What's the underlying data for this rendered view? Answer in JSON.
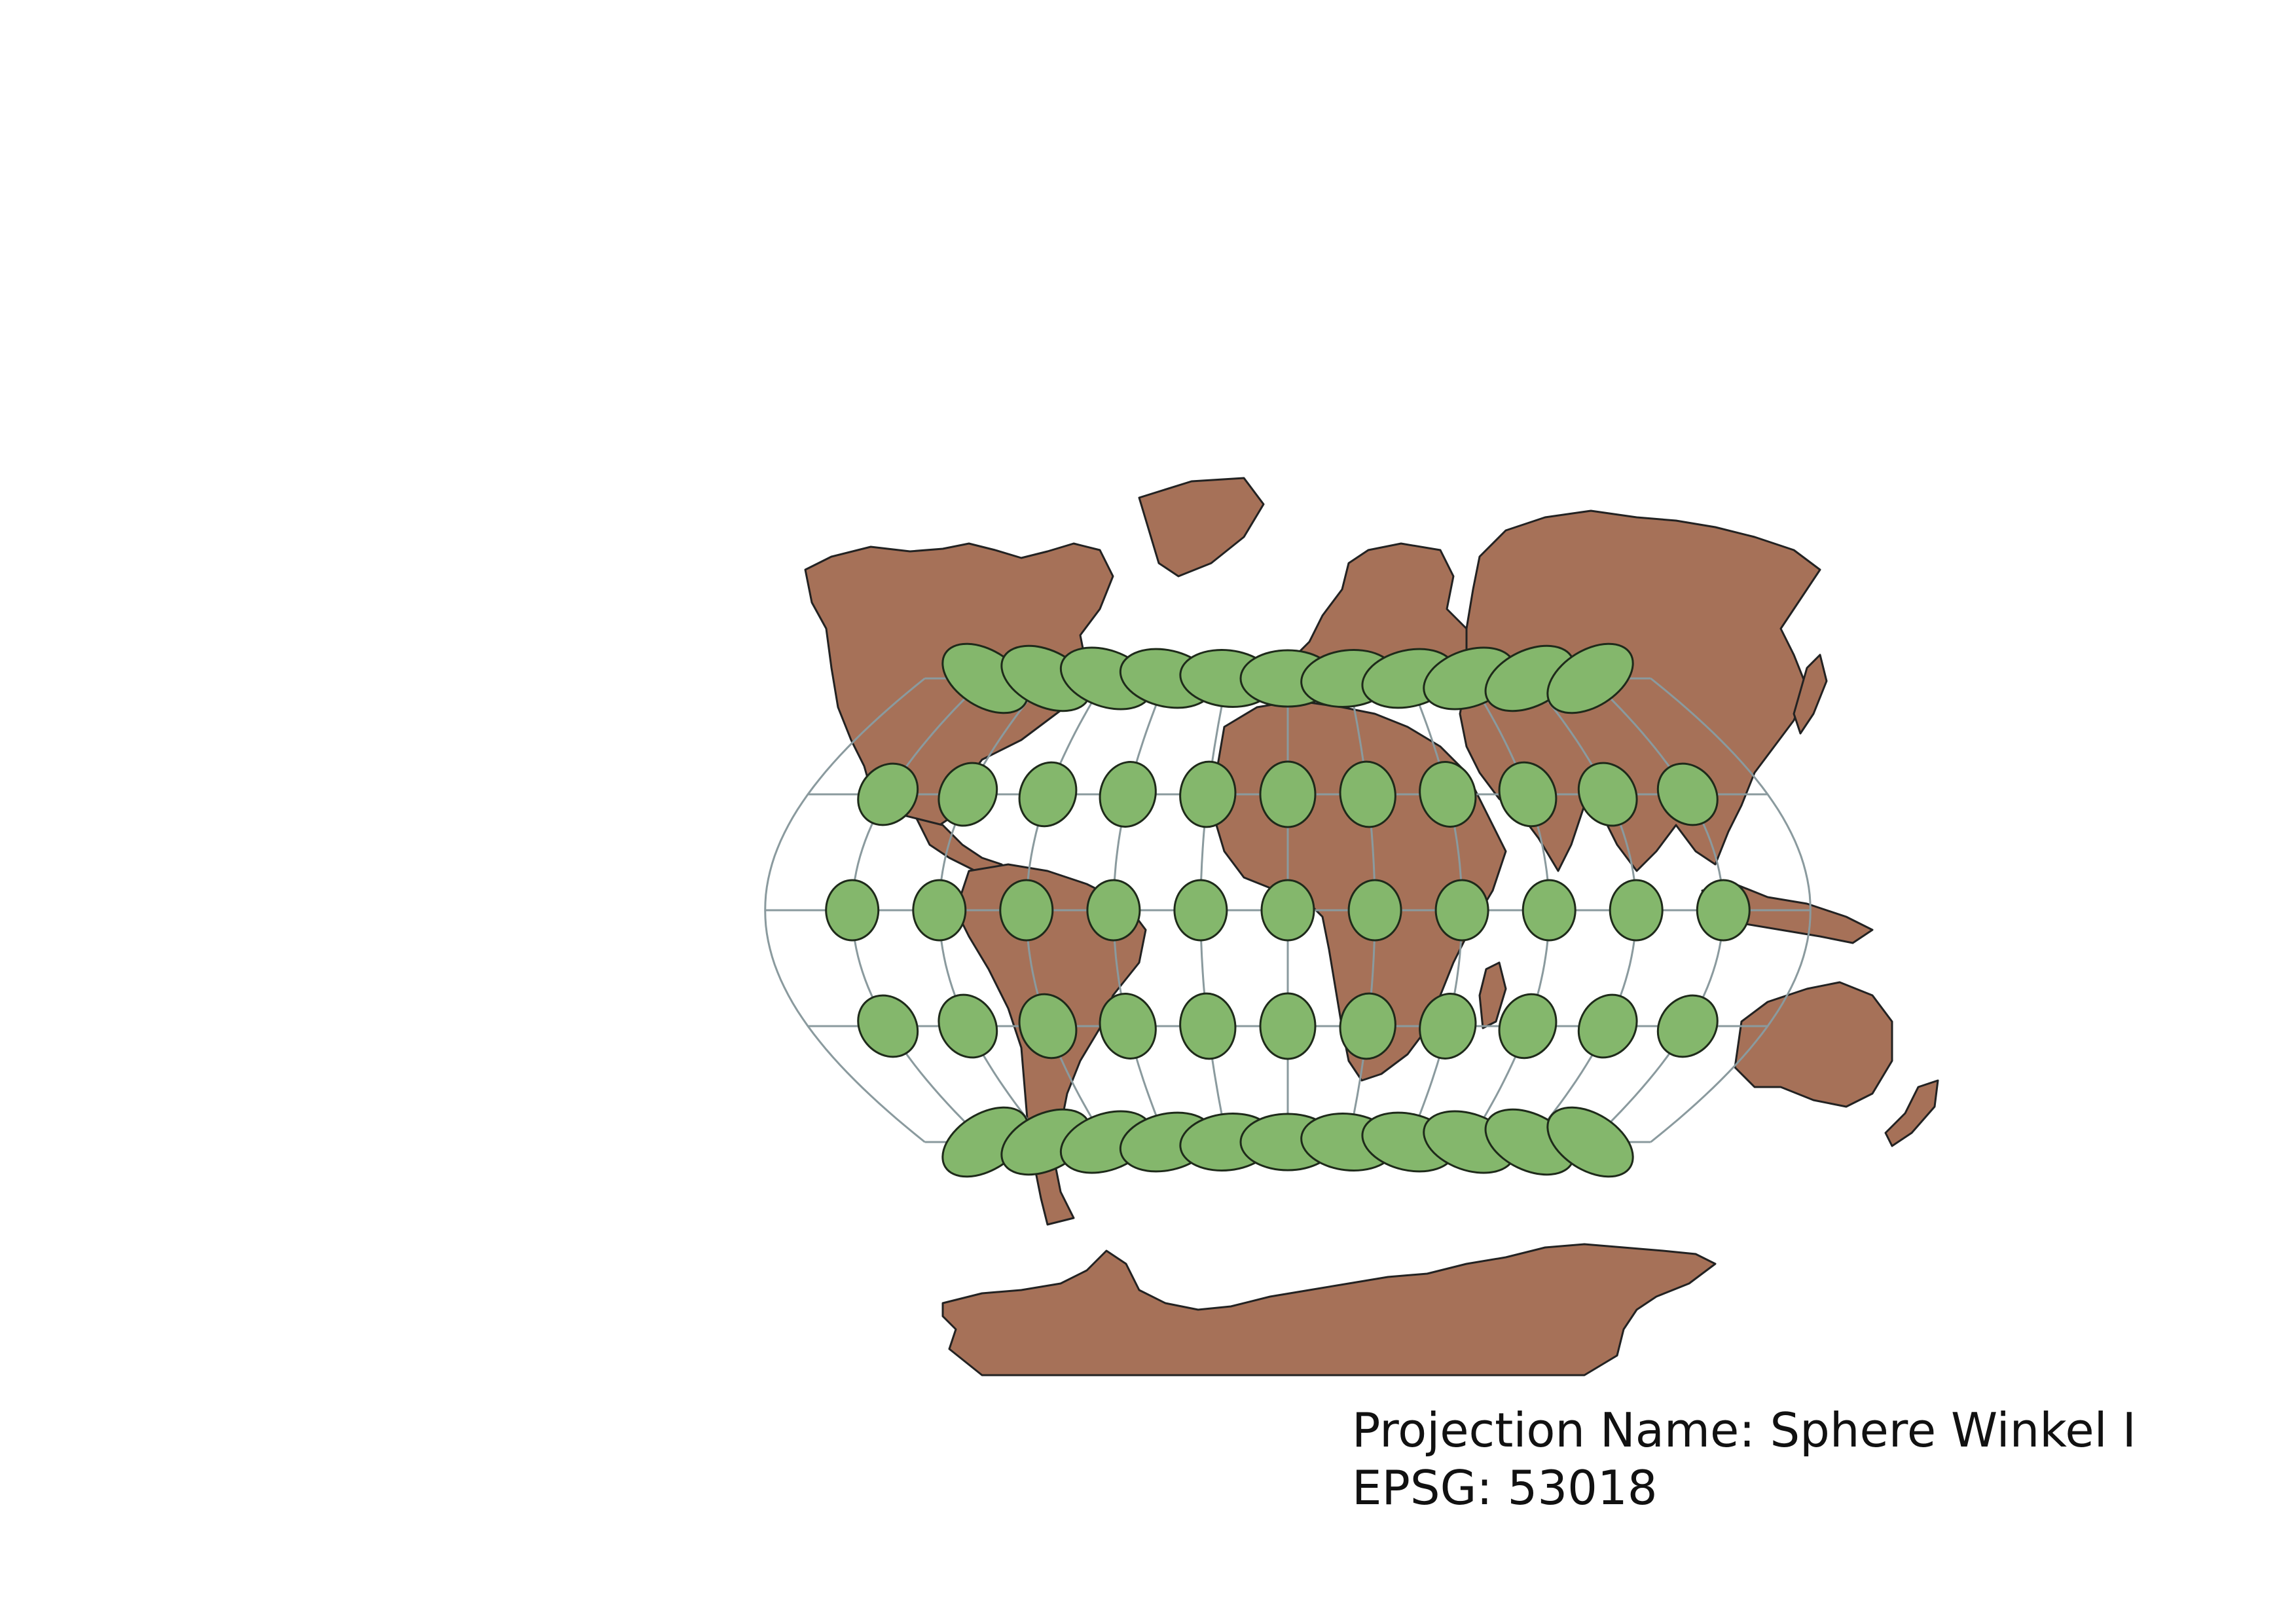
{
  "caption": {
    "projection_line": "Projection Name: Sphere Winkel I",
    "epsg_line": "EPSG: 53018"
  },
  "colors": {
    "land": "#a67158",
    "coast": "#222222",
    "graticule": "#8a9a9e",
    "ellipse_fill": "#84b76c",
    "ellipse_stroke": "#1e2a1a",
    "background": "#ffffff"
  },
  "map": {
    "projection": "Winkel I",
    "graticule_meridians_deg": [
      -180,
      -150,
      -120,
      -90,
      -60,
      -30,
      0,
      30,
      60,
      90,
      120,
      150,
      180
    ],
    "graticule_parallels_deg": [
      60,
      30,
      0,
      -30,
      -60
    ],
    "indicatrix_rows": [
      {
        "lat": 60,
        "count": 11
      },
      {
        "lat": 30,
        "count": 11
      },
      {
        "lat": 0,
        "count": 11
      },
      {
        "lat": -30,
        "count": 11
      },
      {
        "lat": -60,
        "count": 11
      }
    ]
  }
}
